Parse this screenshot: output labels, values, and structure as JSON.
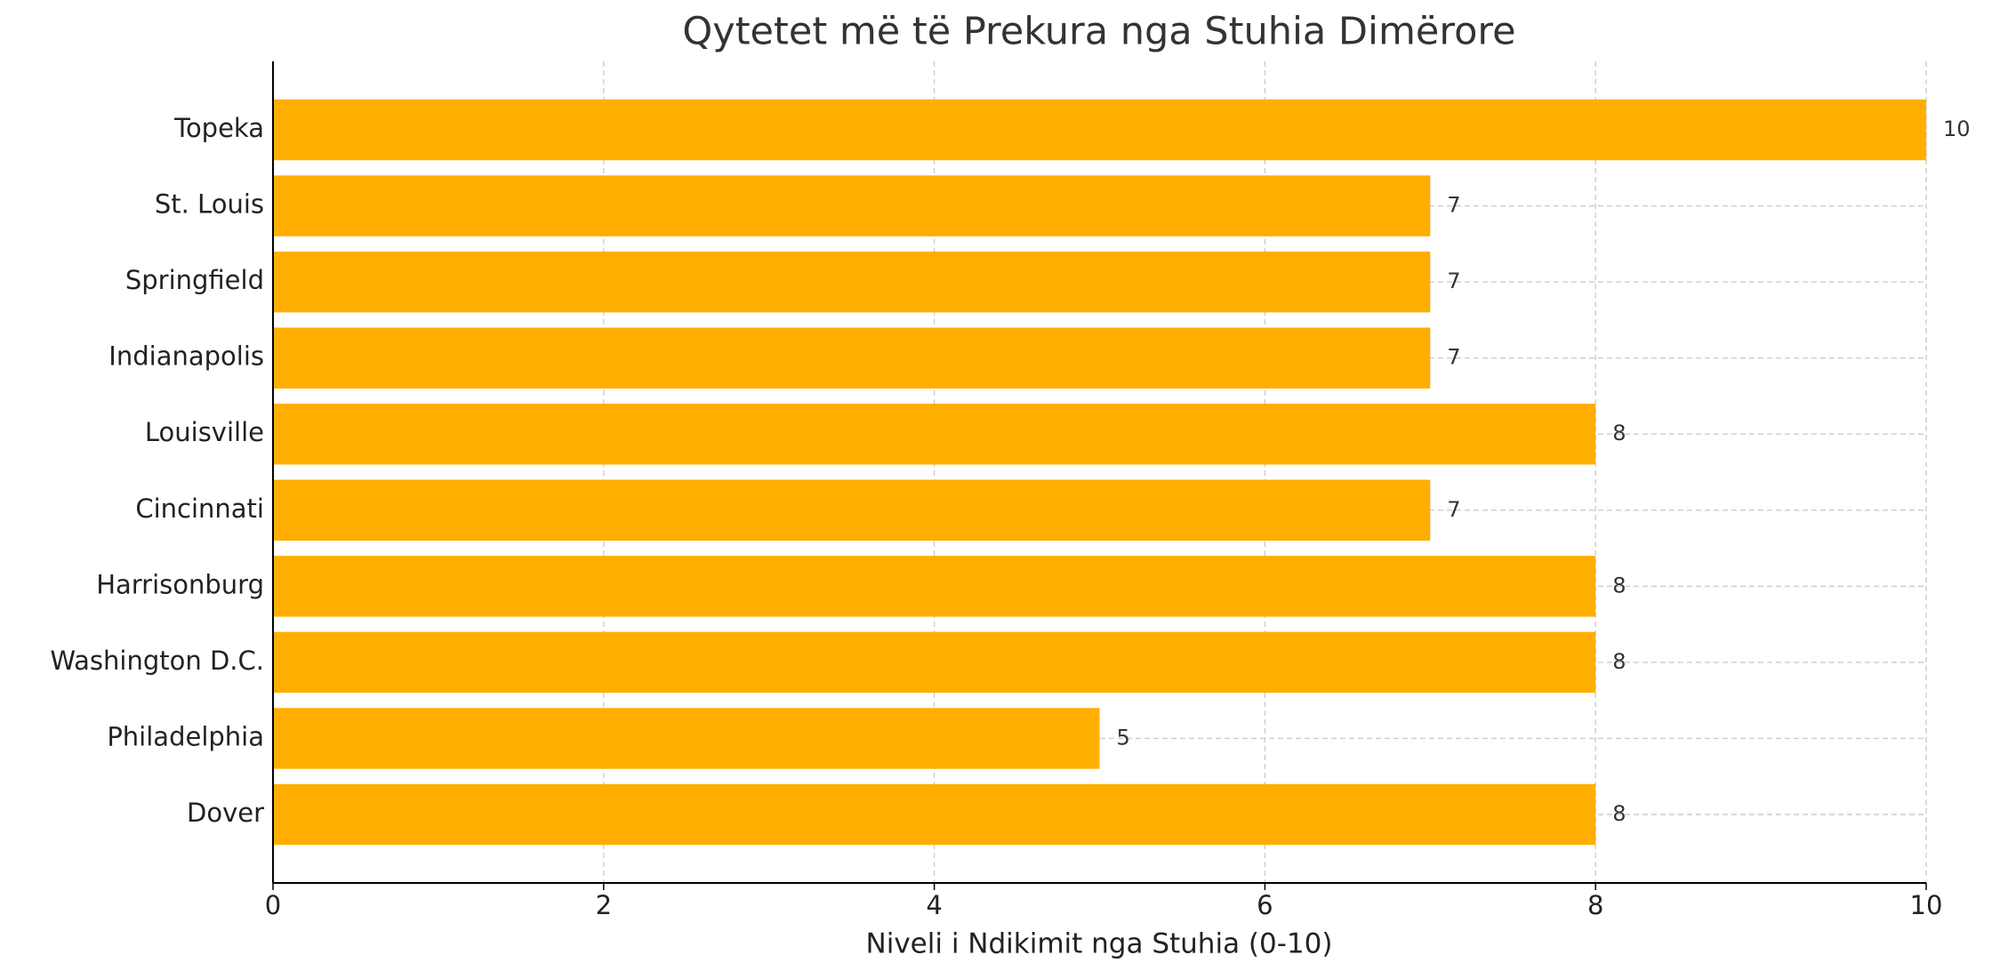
{
  "chart_data": {
    "type": "barh",
    "title": "Qytetet më të Prekura nga Stuhia Dimërore",
    "xlabel": "Niveli i Ndikimit nga Stuhia (0-10)",
    "categories": [
      "Topeka",
      "St. Louis",
      "Springfield",
      "Indianapolis",
      "Louisville",
      "Cincinnati",
      "Harrisonburg",
      "Washington D.C.",
      "Philadelphia",
      "Dover"
    ],
    "values": [
      10,
      7,
      7,
      7,
      8,
      7,
      8,
      8,
      5,
      8
    ],
    "color": "#ffae00",
    "xlim": [
      0,
      10
    ],
    "xticks": [
      0,
      2,
      4,
      6,
      8,
      10
    ],
    "grid": true
  }
}
